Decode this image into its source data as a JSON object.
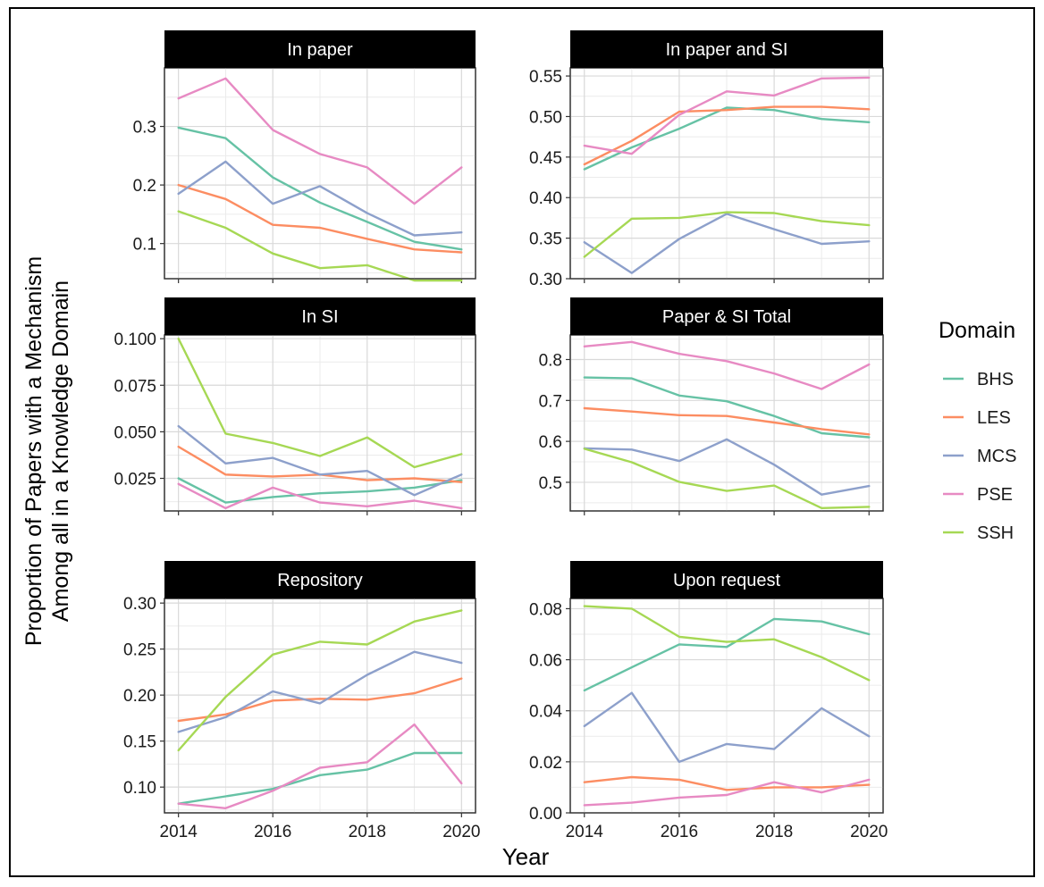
{
  "figure": {
    "xlabel": "Year",
    "ylabel_line1": "Proportion of Papers with a Mechanism",
    "ylabel_line2": "Among all in a Knowledge Domain"
  },
  "legend": {
    "title": "Domain",
    "placement": "right",
    "items": [
      {
        "name": "BHS",
        "color": "#66c2a5"
      },
      {
        "name": "LES",
        "color": "#fc8d62"
      },
      {
        "name": "MCS",
        "color": "#8da0cb"
      },
      {
        "name": "PSE",
        "color": "#e78ac3"
      },
      {
        "name": "SSH",
        "color": "#a6d854"
      }
    ]
  },
  "chart_data": [
    {
      "type": "line",
      "title": "In paper",
      "x": [
        2014,
        2015,
        2016,
        2017,
        2018,
        2019,
        2020
      ],
      "xticks": [
        2014,
        2016,
        2018,
        2020
      ],
      "ylim": [
        0.04,
        0.4
      ],
      "yticks": [
        0.1,
        0.2,
        0.3
      ],
      "ytick_labels": [
        "0.1",
        "0.2",
        "0.3"
      ],
      "show_xtick_labels": false,
      "series": [
        {
          "name": "BHS",
          "values": [
            0.298,
            0.28,
            0.213,
            0.17,
            0.137,
            0.103,
            0.09
          ]
        },
        {
          "name": "LES",
          "values": [
            0.2,
            0.176,
            0.132,
            0.127,
            0.108,
            0.09,
            0.085
          ]
        },
        {
          "name": "MCS",
          "values": [
            0.185,
            0.24,
            0.168,
            0.198,
            0.152,
            0.114,
            0.119
          ]
        },
        {
          "name": "PSE",
          "values": [
            0.348,
            0.382,
            0.294,
            0.253,
            0.23,
            0.168,
            0.23
          ]
        },
        {
          "name": "SSH",
          "values": [
            0.155,
            0.127,
            0.083,
            0.058,
            0.063,
            0.037,
            0.037
          ]
        }
      ]
    },
    {
      "type": "line",
      "title": "In paper and SI",
      "x": [
        2014,
        2015,
        2016,
        2017,
        2018,
        2019,
        2020
      ],
      "xticks": [
        2014,
        2016,
        2018,
        2020
      ],
      "ylim": [
        0.3,
        0.56
      ],
      "yticks": [
        0.3,
        0.35,
        0.4,
        0.45,
        0.5,
        0.55
      ],
      "ytick_labels": [
        "0.30",
        "0.35",
        "0.40",
        "0.45",
        "0.50",
        "0.55"
      ],
      "show_xtick_labels": false,
      "series": [
        {
          "name": "BHS",
          "values": [
            0.435,
            0.462,
            0.485,
            0.511,
            0.508,
            0.497,
            0.493
          ]
        },
        {
          "name": "LES",
          "values": [
            0.441,
            0.47,
            0.506,
            0.508,
            0.512,
            0.512,
            0.509
          ]
        },
        {
          "name": "MCS",
          "values": [
            0.345,
            0.307,
            0.349,
            0.38,
            0.361,
            0.343,
            0.346
          ]
        },
        {
          "name": "PSE",
          "values": [
            0.464,
            0.454,
            0.502,
            0.531,
            0.526,
            0.547,
            0.548
          ]
        },
        {
          "name": "SSH",
          "values": [
            0.327,
            0.374,
            0.375,
            0.382,
            0.381,
            0.371,
            0.366
          ]
        }
      ]
    },
    {
      "type": "line",
      "title": "In SI",
      "x": [
        2014,
        2015,
        2016,
        2017,
        2018,
        2019,
        2020
      ],
      "xticks": [
        2014,
        2016,
        2018,
        2020
      ],
      "ylim": [
        0.0075,
        0.102
      ],
      "yticks": [
        0.025,
        0.05,
        0.075,
        0.1
      ],
      "ytick_labels": [
        "0.025",
        "0.050",
        "0.075",
        "0.100"
      ],
      "show_xtick_labels": false,
      "series": [
        {
          "name": "BHS",
          "values": [
            0.025,
            0.012,
            0.015,
            0.017,
            0.018,
            0.02,
            0.024
          ]
        },
        {
          "name": "LES",
          "values": [
            0.042,
            0.027,
            0.026,
            0.027,
            0.024,
            0.025,
            0.023
          ]
        },
        {
          "name": "MCS",
          "values": [
            0.053,
            0.033,
            0.036,
            0.027,
            0.029,
            0.016,
            0.027
          ]
        },
        {
          "name": "PSE",
          "values": [
            0.022,
            0.009,
            0.02,
            0.012,
            0.01,
            0.013,
            0.009
          ]
        },
        {
          "name": "SSH",
          "values": [
            0.1,
            0.049,
            0.044,
            0.037,
            0.047,
            0.031,
            0.038
          ]
        }
      ]
    },
    {
      "type": "line",
      "title": "Paper & SI Total",
      "x": [
        2014,
        2015,
        2016,
        2017,
        2018,
        2019,
        2020
      ],
      "xticks": [
        2014,
        2016,
        2018,
        2020
      ],
      "ylim": [
        0.43,
        0.86
      ],
      "yticks": [
        0.5,
        0.6,
        0.7,
        0.8
      ],
      "ytick_labels": [
        "0.5",
        "0.6",
        "0.7",
        "0.8"
      ],
      "show_xtick_labels": false,
      "series": [
        {
          "name": "BHS",
          "values": [
            0.756,
            0.754,
            0.712,
            0.698,
            0.662,
            0.62,
            0.61
          ]
        },
        {
          "name": "LES",
          "values": [
            0.681,
            0.673,
            0.664,
            0.662,
            0.646,
            0.63,
            0.617
          ]
        },
        {
          "name": "MCS",
          "values": [
            0.583,
            0.58,
            0.552,
            0.605,
            0.543,
            0.47,
            0.491
          ]
        },
        {
          "name": "PSE",
          "values": [
            0.832,
            0.843,
            0.814,
            0.796,
            0.766,
            0.728,
            0.788
          ]
        },
        {
          "name": "SSH",
          "values": [
            0.582,
            0.549,
            0.501,
            0.479,
            0.492,
            0.437,
            0.44
          ]
        }
      ]
    },
    {
      "type": "line",
      "title": "Repository",
      "x": [
        2014,
        2015,
        2016,
        2017,
        2018,
        2019,
        2020
      ],
      "xticks": [
        2014,
        2016,
        2018,
        2020
      ],
      "xtick_labels": [
        "2014",
        "2016",
        "2018",
        "2020"
      ],
      "ylim": [
        0.072,
        0.305
      ],
      "yticks": [
        0.1,
        0.15,
        0.2,
        0.25,
        0.3
      ],
      "ytick_labels": [
        "0.10",
        "0.15",
        "0.20",
        "0.25",
        "0.30"
      ],
      "show_xtick_labels": true,
      "series": [
        {
          "name": "BHS",
          "values": [
            0.082,
            0.09,
            0.098,
            0.113,
            0.119,
            0.137,
            0.137
          ]
        },
        {
          "name": "LES",
          "values": [
            0.172,
            0.179,
            0.194,
            0.196,
            0.195,
            0.202,
            0.218
          ]
        },
        {
          "name": "MCS",
          "values": [
            0.16,
            0.176,
            0.204,
            0.191,
            0.222,
            0.247,
            0.235
          ]
        },
        {
          "name": "PSE",
          "values": [
            0.082,
            0.077,
            0.096,
            0.121,
            0.127,
            0.168,
            0.104
          ]
        },
        {
          "name": "SSH",
          "values": [
            0.14,
            0.198,
            0.244,
            0.258,
            0.255,
            0.28,
            0.292
          ]
        }
      ]
    },
    {
      "type": "line",
      "title": "Upon request",
      "x": [
        2014,
        2015,
        2016,
        2017,
        2018,
        2019,
        2020
      ],
      "xticks": [
        2014,
        2016,
        2018,
        2020
      ],
      "xtick_labels": [
        "2014",
        "2016",
        "2018",
        "2020"
      ],
      "ylim": [
        0.0,
        0.084
      ],
      "yticks": [
        0.0,
        0.02,
        0.04,
        0.06,
        0.08
      ],
      "ytick_labels": [
        "0.00",
        "0.02",
        "0.04",
        "0.06",
        "0.08"
      ],
      "show_xtick_labels": true,
      "series": [
        {
          "name": "BHS",
          "values": [
            0.048,
            0.057,
            0.066,
            0.065,
            0.076,
            0.075,
            0.07
          ]
        },
        {
          "name": "LES",
          "values": [
            0.012,
            0.014,
            0.013,
            0.009,
            0.01,
            0.01,
            0.011
          ]
        },
        {
          "name": "MCS",
          "values": [
            0.034,
            0.047,
            0.02,
            0.027,
            0.025,
            0.041,
            0.03
          ]
        },
        {
          "name": "PSE",
          "values": [
            0.003,
            0.004,
            0.006,
            0.007,
            0.012,
            0.008,
            0.013
          ]
        },
        {
          "name": "SSH",
          "values": [
            0.081,
            0.08,
            0.069,
            0.067,
            0.068,
            0.061,
            0.052
          ]
        }
      ]
    }
  ]
}
